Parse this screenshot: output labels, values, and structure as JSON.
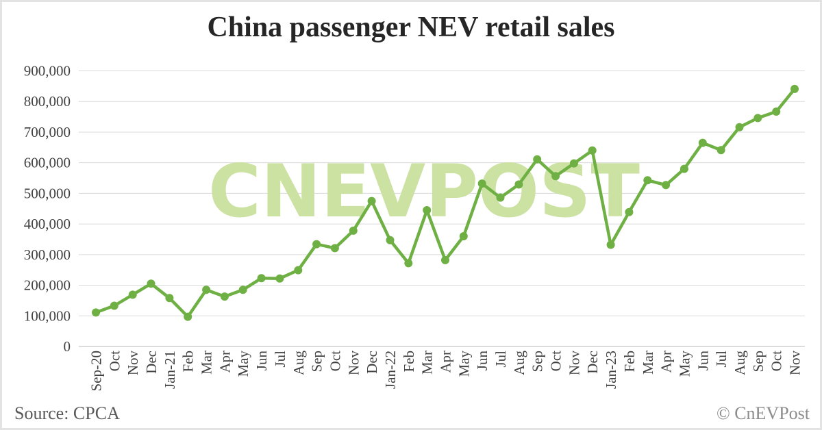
{
  "title": "China passenger NEV retail sales",
  "watermark": "CNEVPOST",
  "footer": {
    "source": "Source: CPCA",
    "copyright": "© CnEVPost"
  },
  "colors": {
    "line": "#6eb043",
    "watermark": "#cce2a3",
    "grid": "#d9d9d9",
    "axis": "#c6c6c6",
    "label": "#404040",
    "title": "#262626",
    "source": "#595959",
    "copyright": "#8c8c8c"
  },
  "chart_data": {
    "type": "line",
    "title": "China passenger NEV retail sales",
    "categories": [
      "Sep-20",
      "Oct",
      "Nov",
      "Dec",
      "Jan-21",
      "Feb",
      "Mar",
      "Apr",
      "May",
      "Jun",
      "Jul",
      "Aug",
      "Sep",
      "Oct",
      "Nov",
      "Dec",
      "Jan-22",
      "Feb",
      "Mar",
      "Apr",
      "May",
      "Jun",
      "Jul",
      "Aug",
      "Sep",
      "Oct",
      "Nov",
      "Dec",
      "Jan-23",
      "Feb",
      "Mar",
      "Apr",
      "May",
      "Jun",
      "Jul",
      "Aug",
      "Sep",
      "Oct",
      "Nov"
    ],
    "values": [
      111000,
      133000,
      169000,
      205000,
      158000,
      97000,
      185000,
      163000,
      185000,
      223000,
      222000,
      249000,
      334000,
      321000,
      378000,
      475000,
      347000,
      272000,
      445000,
      282000,
      360000,
      532000,
      486000,
      529000,
      611000,
      556000,
      598000,
      640000,
      332000,
      439000,
      543000,
      527000,
      580000,
      665000,
      641000,
      716000,
      746000,
      767000,
      841000
    ],
    "xlabel": "",
    "ylabel": "",
    "ylim": [
      0,
      900000
    ],
    "ytick_interval": 100000,
    "yticks": [
      "0",
      "100,000",
      "200,000",
      "300,000",
      "400,000",
      "500,000",
      "600,000",
      "700,000",
      "800,000",
      "900,000"
    ],
    "grid": true,
    "legend": "none"
  }
}
